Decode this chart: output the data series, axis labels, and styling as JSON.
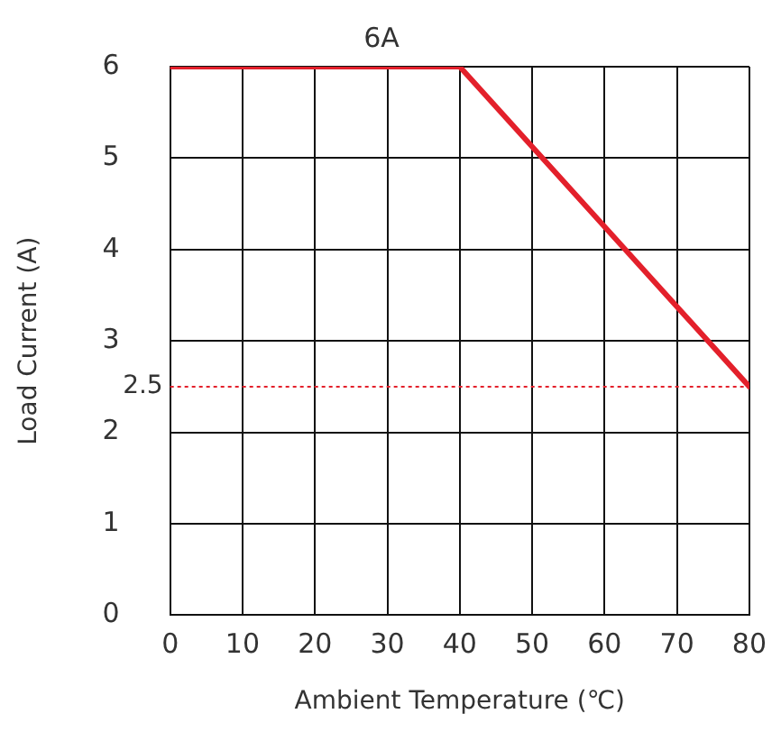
{
  "chart_data": {
    "type": "line",
    "title": "6A",
    "xlabel": "Ambient Temperature (℃)",
    "ylabel": "Load Current (A)",
    "x": [
      0,
      40,
      80
    ],
    "series": [
      {
        "color": "#e3202b",
        "values": [
          6,
          6,
          2.5
        ]
      }
    ],
    "xlim": [
      0,
      80
    ],
    "xticks": [
      0,
      10,
      20,
      30,
      40,
      50,
      60,
      70,
      80
    ],
    "ylim": [
      0,
      6
    ],
    "yticks": [
      0,
      1,
      2,
      3,
      4,
      5,
      6
    ],
    "ref_lines": [
      {
        "axis": "y",
        "value": 2.5,
        "label": "2.5",
        "color": "#e3202b",
        "line_style": "dotted"
      }
    ],
    "grid": true,
    "legend": false,
    "marker": "none",
    "line_style": "solid"
  }
}
